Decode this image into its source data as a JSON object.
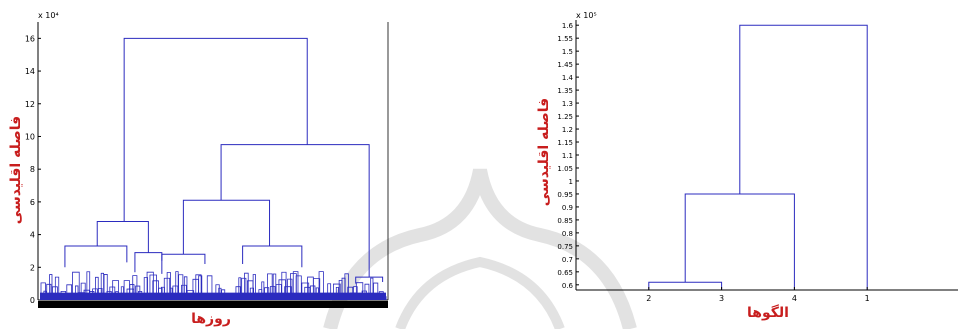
{
  "colors": {
    "axis": "#000000",
    "link": "#2b2bbf",
    "label": "#c81e1e",
    "watermark": "#cfcfcf"
  },
  "chart_data": [
    {
      "type": "dendrogram",
      "x_label": "روزها",
      "y_label": "فاصله اقلیدسی",
      "y_multiplier": "x 10⁴",
      "y_ticks": [
        0,
        2,
        4,
        6,
        8,
        10,
        12,
        14,
        16
      ],
      "ylim": [
        0,
        17
      ],
      "root_height": 16,
      "major_links": [
        {
          "left": 3.2,
          "right": 10.0,
          "height": 16.0
        },
        {
          "left": 2.9,
          "right": 6.1,
          "height": 9.5
        },
        {
          "left": 2.8,
          "right": 3.3,
          "height": 6.1
        },
        {
          "left": 2.2,
          "right": 2.9,
          "height": 4.8
        }
      ]
    },
    {
      "type": "dendrogram",
      "x_label": "الگوها",
      "y_label": "فاصله اقلیدسی",
      "y_multiplier": "x 10⁵",
      "y_ticks": [
        0.6,
        0.65,
        0.7,
        0.75,
        0.8,
        0.85,
        0.9,
        0.95,
        1,
        1.05,
        1.1,
        1.15,
        1.2,
        1.25,
        1.3,
        1.35,
        1.4,
        1.45,
        1.5,
        1.55,
        1.6
      ],
      "ylim": [
        0.58,
        1.62
      ],
      "leaves": [
        "2",
        "3",
        "4",
        "1"
      ],
      "links": [
        {
          "a": "2",
          "b": "3",
          "height": 0.61
        },
        {
          "a": "2-3",
          "b": "4",
          "height": 0.95
        },
        {
          "a": "2-3-4",
          "b": "1",
          "height": 1.6
        }
      ]
    }
  ]
}
